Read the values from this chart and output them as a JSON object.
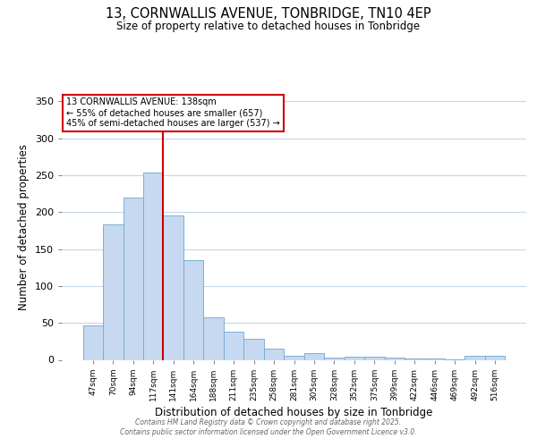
{
  "title_line1": "13, CORNWALLIS AVENUE, TONBRIDGE, TN10 4EP",
  "title_line2": "Size of property relative to detached houses in Tonbridge",
  "xlabel": "Distribution of detached houses by size in Tonbridge",
  "ylabel": "Number of detached properties",
  "categories": [
    "47sqm",
    "70sqm",
    "94sqm",
    "117sqm",
    "141sqm",
    "164sqm",
    "188sqm",
    "211sqm",
    "235sqm",
    "258sqm",
    "281sqm",
    "305sqm",
    "328sqm",
    "352sqm",
    "375sqm",
    "399sqm",
    "422sqm",
    "446sqm",
    "469sqm",
    "492sqm",
    "516sqm"
  ],
  "values": [
    47,
    183,
    220,
    253,
    195,
    135,
    58,
    38,
    28,
    15,
    6,
    9,
    3,
    4,
    4,
    3,
    2,
    2,
    1,
    5,
    5
  ],
  "bar_color": "#c6d9f0",
  "bar_edge_color": "#7ab0d4",
  "red_line_index": 3.5,
  "red_line_label": "13 CORNWALLIS AVENUE: 138sqm",
  "annotation_line2": "← 55% of detached houses are smaller (657)",
  "annotation_line3": "45% of semi-detached houses are larger (537) →",
  "annotation_box_facecolor": "#ffffff",
  "annotation_box_edgecolor": "#cc0000",
  "red_line_color": "#cc0000",
  "ylim": [
    0,
    360
  ],
  "yticks": [
    0,
    50,
    100,
    150,
    200,
    250,
    300,
    350
  ],
  "bg_color": "#ffffff",
  "grid_color": "#c5d8ec",
  "footer_line1": "Contains HM Land Registry data © Crown copyright and database right 2025.",
  "footer_line2": "Contains public sector information licensed under the Open Government Licence v3.0."
}
